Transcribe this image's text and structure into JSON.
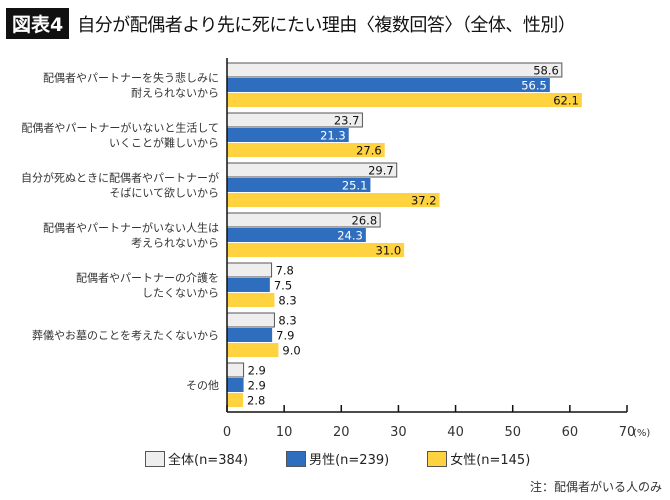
{
  "header": {
    "badge": "図表4",
    "title": "自分が配偶者より先に死にたい理由〈複数回答〉（全体、性別）"
  },
  "note": "注：配偶者がいる人のみ",
  "chart_data": {
    "type": "bar",
    "orientation": "horizontal",
    "categories": [
      [
        "配偶者やパートナーを失う悲しみに",
        "耐えられないから"
      ],
      [
        "配偶者やパートナーがいないと生活して",
        "いくことが難しいから"
      ],
      [
        "自分が死ぬときに配偶者やパートナーが",
        "そばにいて欲しいから"
      ],
      [
        "配偶者やパートナーがいない人生は",
        "考えられないから"
      ],
      [
        "配偶者やパートナーの介護を",
        "したくないから"
      ],
      [
        "葬儀やお墓のことを考えたくないから"
      ],
      [
        "その他"
      ]
    ],
    "series": [
      {
        "name": "全体(n=384)",
        "color": "#eeeeee",
        "values": [
          58.6,
          23.7,
          29.7,
          26.8,
          7.8,
          8.3,
          2.9
        ]
      },
      {
        "name": "男性(n=239)",
        "color": "#2f6ebf",
        "values": [
          56.5,
          21.3,
          25.1,
          24.3,
          7.5,
          7.9,
          2.9
        ]
      },
      {
        "name": "女性(n=145)",
        "color": "#ffd23f",
        "values": [
          62.1,
          27.6,
          37.2,
          31.0,
          8.3,
          9.0,
          2.8
        ]
      }
    ],
    "xlim": [
      0,
      70
    ],
    "xticks": [
      "0",
      "10",
      "20",
      "30",
      "40",
      "50",
      "60",
      "70"
    ],
    "xunit": "(%)",
    "grid": false,
    "legend": "bottom"
  }
}
